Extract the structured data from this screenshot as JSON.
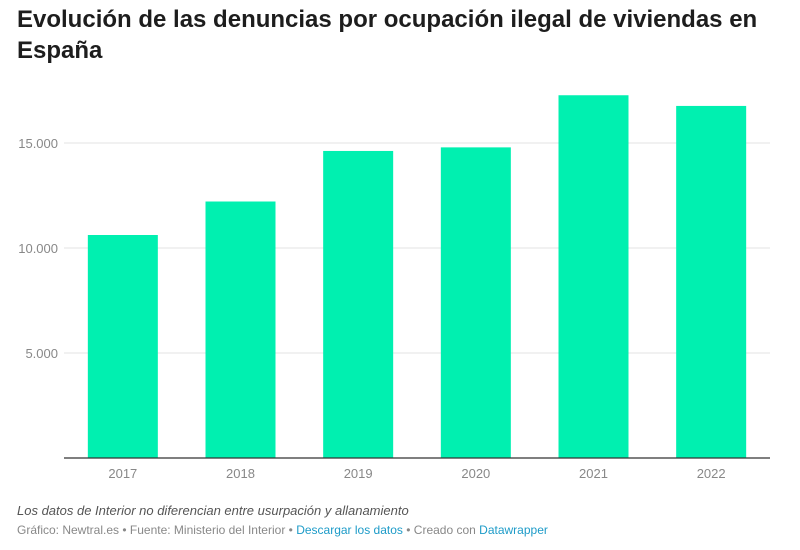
{
  "title": "Evolución de las denuncias por ocupación ilegal de viviendas en España",
  "chart_data": {
    "type": "bar",
    "title": "Evolución de las denuncias por ocupación ilegal de viviendas en España",
    "categories": [
      "2017",
      "2018",
      "2019",
      "2020",
      "2021",
      "2022"
    ],
    "values": [
      10619,
      12214,
      14621,
      14792,
      17274,
      16765
    ],
    "ylim": [
      0,
      17500
    ],
    "yticks": [
      5000,
      10000,
      15000
    ],
    "ytick_labels": [
      "5.000",
      "10.000",
      "15.000"
    ],
    "grid": true,
    "color": "#00f0b0"
  },
  "note": "Los datos de Interior no diferencian entre usurpación y allanamiento",
  "footer": {
    "credit": "Gráfico: Newtral.es",
    "sep1": " • ",
    "source": "Fuente: Ministerio del Interior",
    "sep2": " • ",
    "download_link": "Descargar los datos",
    "sep3": " • ",
    "created": "Creado con ",
    "datawrapper_link": "Datawrapper"
  }
}
